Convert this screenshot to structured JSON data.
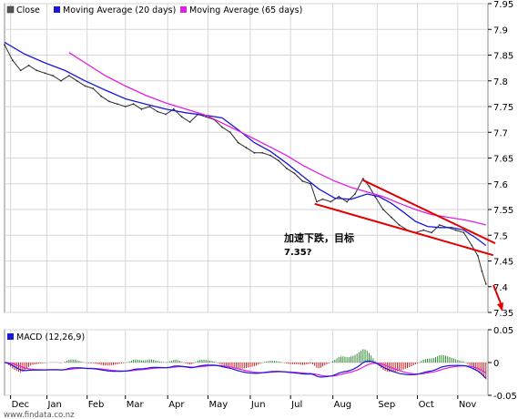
{
  "colors": {
    "close": "#2b2b2b",
    "ma20": "#1a1ad6",
    "ma65": "#e020e0",
    "annotation": "#e00000",
    "macd_pos": "#2e8b2e",
    "macd_neg": "#cc2020",
    "grid": "#d6d6d6"
  },
  "chart_data": [
    {
      "type": "line",
      "legend": [
        "Close",
        "Moving Average (20 days)",
        "Moving Average (65 days)"
      ],
      "ylim": [
        7.35,
        7.95
      ],
      "yticks": [
        "7.95",
        "7.9",
        "7.85",
        "7.8",
        "7.75",
        "7.7",
        "7.65",
        "7.6",
        "7.55",
        "7.5",
        "7.45",
        "7.4",
        "7.35"
      ],
      "months": [
        "Dec",
        "Jan",
        "Feb",
        "Mar",
        "Apr",
        "May",
        "Jun",
        "Jul",
        "Aug",
        "Sep",
        "Oct",
        "Nov"
      ],
      "grid": true,
      "series": [
        {
          "name": "Close",
          "points": [
            [
              0,
              7.87
            ],
            [
              4,
              7.84
            ],
            [
              8,
              7.82
            ],
            [
              12,
              7.83
            ],
            [
              16,
              7.82
            ],
            [
              20,
              7.815
            ],
            [
              24,
              7.81
            ],
            [
              28,
              7.8
            ],
            [
              32,
              7.81
            ],
            [
              36,
              7.8
            ],
            [
              40,
              7.79
            ],
            [
              44,
              7.785
            ],
            [
              48,
              7.77
            ],
            [
              52,
              7.76
            ],
            [
              56,
              7.755
            ],
            [
              60,
              7.75
            ],
            [
              64,
              7.755
            ],
            [
              68,
              7.745
            ],
            [
              72,
              7.75
            ],
            [
              76,
              7.74
            ],
            [
              80,
              7.735
            ],
            [
              84,
              7.745
            ],
            [
              88,
              7.73
            ],
            [
              92,
              7.72
            ],
            [
              96,
              7.735
            ],
            [
              100,
              7.73
            ],
            [
              104,
              7.725
            ],
            [
              108,
              7.71
            ],
            [
              112,
              7.7
            ],
            [
              116,
              7.68
            ],
            [
              120,
              7.67
            ],
            [
              124,
              7.66
            ],
            [
              128,
              7.66
            ],
            [
              132,
              7.655
            ],
            [
              136,
              7.645
            ],
            [
              140,
              7.63
            ],
            [
              144,
              7.62
            ],
            [
              148,
              7.605
            ],
            [
              152,
              7.6
            ],
            [
              155,
              7.565
            ],
            [
              158,
              7.57
            ],
            [
              162,
              7.565
            ],
            [
              166,
              7.575
            ],
            [
              170,
              7.565
            ],
            [
              174,
              7.58
            ],
            [
              178,
              7.61
            ],
            [
              181,
              7.595
            ],
            [
              184,
              7.575
            ],
            [
              188,
              7.55
            ],
            [
              192,
              7.535
            ],
            [
              196,
              7.52
            ],
            [
              200,
              7.51
            ],
            [
              204,
              7.505
            ],
            [
              208,
              7.51
            ],
            [
              212,
              7.505
            ],
            [
              216,
              7.52
            ],
            [
              220,
              7.515
            ],
            [
              224,
              7.51
            ],
            [
              228,
              7.505
            ],
            [
              232,
              7.48
            ],
            [
              235,
              7.46
            ],
            [
              237,
              7.43
            ],
            [
              239,
              7.405
            ]
          ]
        },
        {
          "name": "Moving Average (20 days)",
          "points": [
            [
              0,
              7.875
            ],
            [
              10,
              7.852
            ],
            [
              20,
              7.835
            ],
            [
              30,
              7.82
            ],
            [
              40,
              7.8
            ],
            [
              50,
              7.782
            ],
            [
              60,
              7.765
            ],
            [
              70,
              7.755
            ],
            [
              80,
              7.745
            ],
            [
              90,
              7.738
            ],
            [
              100,
              7.733
            ],
            [
              108,
              7.728
            ],
            [
              116,
              7.705
            ],
            [
              124,
              7.68
            ],
            [
              132,
              7.663
            ],
            [
              140,
              7.64
            ],
            [
              148,
              7.615
            ],
            [
              156,
              7.59
            ],
            [
              164,
              7.572
            ],
            [
              172,
              7.57
            ],
            [
              180,
              7.58
            ],
            [
              186,
              7.575
            ],
            [
              192,
              7.562
            ],
            [
              198,
              7.545
            ],
            [
              204,
              7.527
            ],
            [
              210,
              7.517
            ],
            [
              216,
              7.515
            ],
            [
              222,
              7.515
            ],
            [
              228,
              7.51
            ],
            [
              234,
              7.495
            ],
            [
              239,
              7.48
            ]
          ]
        },
        {
          "name": "Moving Average (65 days)",
          "points": [
            [
              32,
              7.855
            ],
            [
              40,
              7.835
            ],
            [
              50,
              7.81
            ],
            [
              60,
              7.79
            ],
            [
              70,
              7.772
            ],
            [
              80,
              7.757
            ],
            [
              90,
              7.745
            ],
            [
              100,
              7.733
            ],
            [
              108,
              7.718
            ],
            [
              116,
              7.703
            ],
            [
              124,
              7.687
            ],
            [
              132,
              7.671
            ],
            [
              140,
              7.655
            ],
            [
              148,
              7.636
            ],
            [
              156,
              7.62
            ],
            [
              164,
              7.605
            ],
            [
              172,
              7.593
            ],
            [
              180,
              7.584
            ],
            [
              188,
              7.575
            ],
            [
              196,
              7.562
            ],
            [
              204,
              7.55
            ],
            [
              212,
              7.54
            ],
            [
              220,
              7.535
            ],
            [
              228,
              7.53
            ],
            [
              234,
              7.525
            ],
            [
              239,
              7.52
            ]
          ]
        }
      ],
      "trendlines": [
        {
          "from": [
            154,
            7.561
          ],
          "to": [
            239,
            7.463
          ]
        },
        {
          "from": [
            178,
            7.607
          ],
          "to": [
            240,
            7.486
          ]
        }
      ],
      "annotation": {
        "line1": "加速下跌，目标",
        "line2": "7.35?"
      }
    },
    {
      "type": "bar",
      "legend": [
        "MACD (12,26,9)"
      ],
      "ylim": [
        -0.05,
        0.05
      ],
      "yticks": [
        "0.05",
        "0",
        "-0.05"
      ],
      "grid": true
    }
  ],
  "footer": {
    "credit": "www.findata.co.nz"
  }
}
